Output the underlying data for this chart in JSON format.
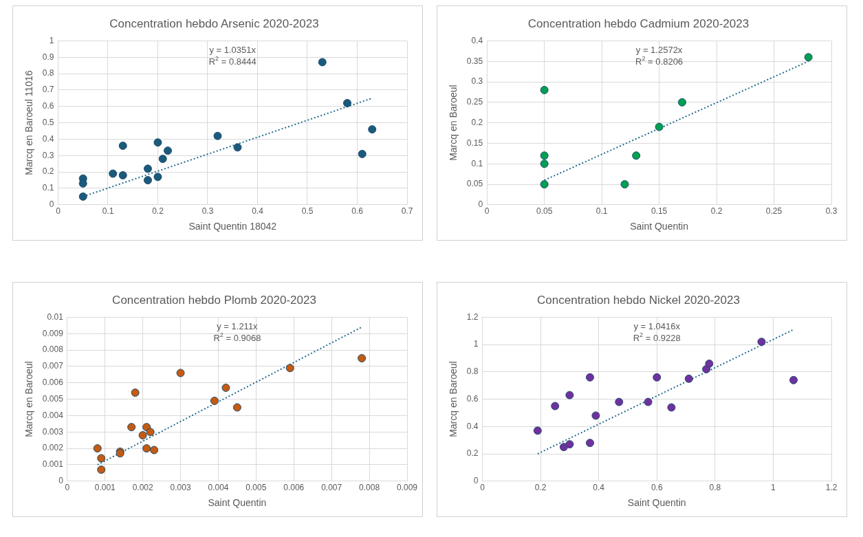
{
  "chart_data": [
    {
      "type": "scatter",
      "title": "Concentration hebdo Arsenic 2020-2023",
      "xlabel": "Saint Quentin 18042",
      "ylabel": "Marcq en Baroeul 11016",
      "xlim": [
        0,
        0.7
      ],
      "xticks": [
        0,
        0.1,
        0.2,
        0.3,
        0.4,
        0.5,
        0.6,
        0.7
      ],
      "ylim": [
        0,
        1
      ],
      "yticks": [
        0,
        0.1,
        0.2,
        0.3,
        0.4,
        0.5,
        0.6,
        0.7,
        0.8,
        0.9,
        1
      ],
      "grid": true,
      "legend": false,
      "marker": "circle",
      "annotations": [
        "y = 1.0351x",
        "R$^{2}$ = 0.8444"
      ],
      "series": [
        {
          "type": "scatter",
          "color": "#1b5a7c",
          "x": [
            0.05,
            0.05,
            0.05,
            0.11,
            0.13,
            0.13,
            0.18,
            0.18,
            0.2,
            0.2,
            0.21,
            0.22,
            0.32,
            0.36,
            0.53,
            0.58,
            0.61,
            0.63
          ],
          "values": [
            0.16,
            0.13,
            0.05,
            0.19,
            0.36,
            0.18,
            0.22,
            0.15,
            0.38,
            0.17,
            0.28,
            0.33,
            0.42,
            0.35,
            0.87,
            0.62,
            0.31,
            0.46
          ]
        },
        {
          "type": "line",
          "color": "#1f6a8c",
          "line_style": "dotted",
          "marker": "none",
          "x": [
            0.05,
            0.63
          ],
          "values": [
            0.05,
            0.65
          ]
        }
      ]
    },
    {
      "type": "scatter",
      "title": "Concentration hebdo Cadmium 2020-2023",
      "xlabel": "Saint Quentin",
      "ylabel": "Marcq en Baroeul",
      "xlim": [
        0,
        0.3
      ],
      "xticks": [
        0,
        0.05,
        0.1,
        0.15,
        0.2,
        0.25,
        0.3
      ],
      "ylim": [
        0,
        0.4
      ],
      "yticks": [
        0,
        0.05,
        0.1,
        0.15,
        0.2,
        0.25,
        0.3,
        0.35,
        0.4
      ],
      "grid": true,
      "legend": false,
      "marker": "circle",
      "annotations": [
        "y = 1.2572x",
        "R$^{2}$ = 0.8206"
      ],
      "series": [
        {
          "type": "scatter",
          "color": "#00a050",
          "x": [
            0.05,
            0.05,
            0.05,
            0.05,
            0.12,
            0.13,
            0.15,
            0.17,
            0.28
          ],
          "values": [
            0.28,
            0.12,
            0.1,
            0.05,
            0.05,
            0.12,
            0.19,
            0.25,
            0.36
          ]
        },
        {
          "type": "line",
          "color": "#1f6a8c",
          "line_style": "dotted",
          "marker": "none",
          "x": [
            0.05,
            0.28
          ],
          "values": [
            0.06,
            0.35
          ]
        }
      ]
    },
    {
      "type": "scatter",
      "title": "Concentration hebdo Plomb 2020-2023",
      "xlabel": "Saint Quentin",
      "ylabel": "Marcq en Baroeul",
      "xlim": [
        0,
        0.009
      ],
      "xticks": [
        0,
        0.001,
        0.002,
        0.003,
        0.004,
        0.005,
        0.006,
        0.007,
        0.008,
        0.009
      ],
      "ylim": [
        0,
        0.01
      ],
      "yticks": [
        0,
        0.001,
        0.002,
        0.003,
        0.004,
        0.005,
        0.006,
        0.007,
        0.008,
        0.009,
        0.01
      ],
      "grid": true,
      "legend": false,
      "marker": "circle",
      "annotations": [
        "y = 1.211x",
        "R$^{2}$ = 0.9068"
      ],
      "series": [
        {
          "type": "scatter",
          "color": "#c55a11",
          "x": [
            0.0008,
            0.0009,
            0.0009,
            0.0014,
            0.0014,
            0.0017,
            0.0018,
            0.002,
            0.0021,
            0.0021,
            0.0022,
            0.0023,
            0.003,
            0.0039,
            0.0042,
            0.0045,
            0.0059,
            0.0078
          ],
          "values": [
            0.002,
            0.0014,
            0.0007,
            0.0018,
            0.0017,
            0.0033,
            0.0054,
            0.0028,
            0.0033,
            0.002,
            0.003,
            0.0019,
            0.0066,
            0.0049,
            0.0057,
            0.0045,
            0.0069,
            0.0075
          ]
        },
        {
          "type": "line",
          "color": "#1f6a8c",
          "line_style": "dotted",
          "marker": "none",
          "x": [
            0.0008,
            0.0078
          ],
          "values": [
            0.001,
            0.0094
          ]
        }
      ]
    },
    {
      "type": "scatter",
      "title": "Concentration hebdo Nickel 2020-2023",
      "xlabel": "Saint Quentin",
      "ylabel": "Marcq en Baroeul",
      "xlim": [
        0,
        1.2
      ],
      "xticks": [
        0,
        0.2,
        0.4,
        0.6,
        0.8,
        1,
        1.2
      ],
      "ylim": [
        0,
        1.2
      ],
      "yticks": [
        0,
        0.2,
        0.4,
        0.6,
        0.8,
        1,
        1.2
      ],
      "grid": true,
      "legend": false,
      "marker": "circle",
      "annotations": [
        "y = 1.0416x",
        "R$^{2}$ = 0.9228"
      ],
      "series": [
        {
          "type": "scatter",
          "color": "#7030a0",
          "x": [
            0.19,
            0.25,
            0.28,
            0.3,
            0.3,
            0.37,
            0.37,
            0.39,
            0.47,
            0.57,
            0.6,
            0.65,
            0.71,
            0.77,
            0.78,
            0.96,
            1.07
          ],
          "values": [
            0.37,
            0.55,
            0.25,
            0.27,
            0.63,
            0.76,
            0.28,
            0.48,
            0.58,
            0.58,
            0.76,
            0.54,
            0.75,
            0.82,
            0.86,
            1.02,
            0.74
          ]
        },
        {
          "type": "line",
          "color": "#1f6a8c",
          "line_style": "dotted",
          "marker": "none",
          "x": [
            0.19,
            1.07
          ],
          "values": [
            0.2,
            1.11
          ]
        }
      ]
    }
  ]
}
